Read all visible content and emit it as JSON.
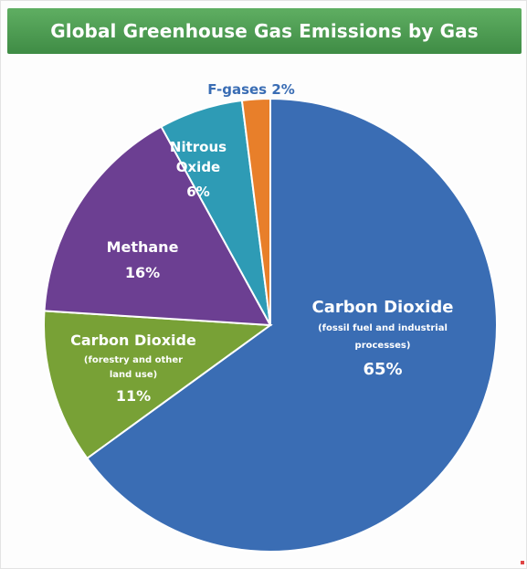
{
  "chart_data": {
    "type": "pie",
    "title": "Global Greenhouse Gas Emissions by Gas",
    "slices": [
      {
        "name": "Carbon Dioxide",
        "sub": "(fossil fuel and industrial processes)",
        "value": 65,
        "value_label": "65%",
        "color": "#3a6db4"
      },
      {
        "name": "Carbon Dioxide",
        "sub": "(forestry and other land use)",
        "value": 11,
        "value_label": "11%",
        "color": "#78a136"
      },
      {
        "name": "Methane",
        "sub": "",
        "value": 16,
        "value_label": "16%",
        "color": "#6c3f92"
      },
      {
        "name": "Nitrous Oxide",
        "sub": "",
        "value": 6,
        "value_label": "6%",
        "color": "#2e9bb5"
      },
      {
        "name": "F-gases",
        "sub": "",
        "value": 2,
        "value_label": "2%",
        "color": "#e87f2a"
      }
    ],
    "labels": {
      "co2_fossil": {
        "line1": "Carbon Dioxide",
        "line2": "(fossil fuel and industrial",
        "line3": "processes)",
        "value": "65%"
      },
      "co2_forestry": {
        "line1": "Carbon Dioxide",
        "line2": "(forestry and other",
        "line3": "land use)",
        "value": "11%"
      },
      "methane": {
        "line1": "Methane",
        "value": "16%"
      },
      "nitrous": {
        "line1": "Nitrous",
        "line2": "Oxide",
        "value": "6%"
      },
      "fgases": {
        "line1": "F-gases 2%"
      }
    }
  }
}
